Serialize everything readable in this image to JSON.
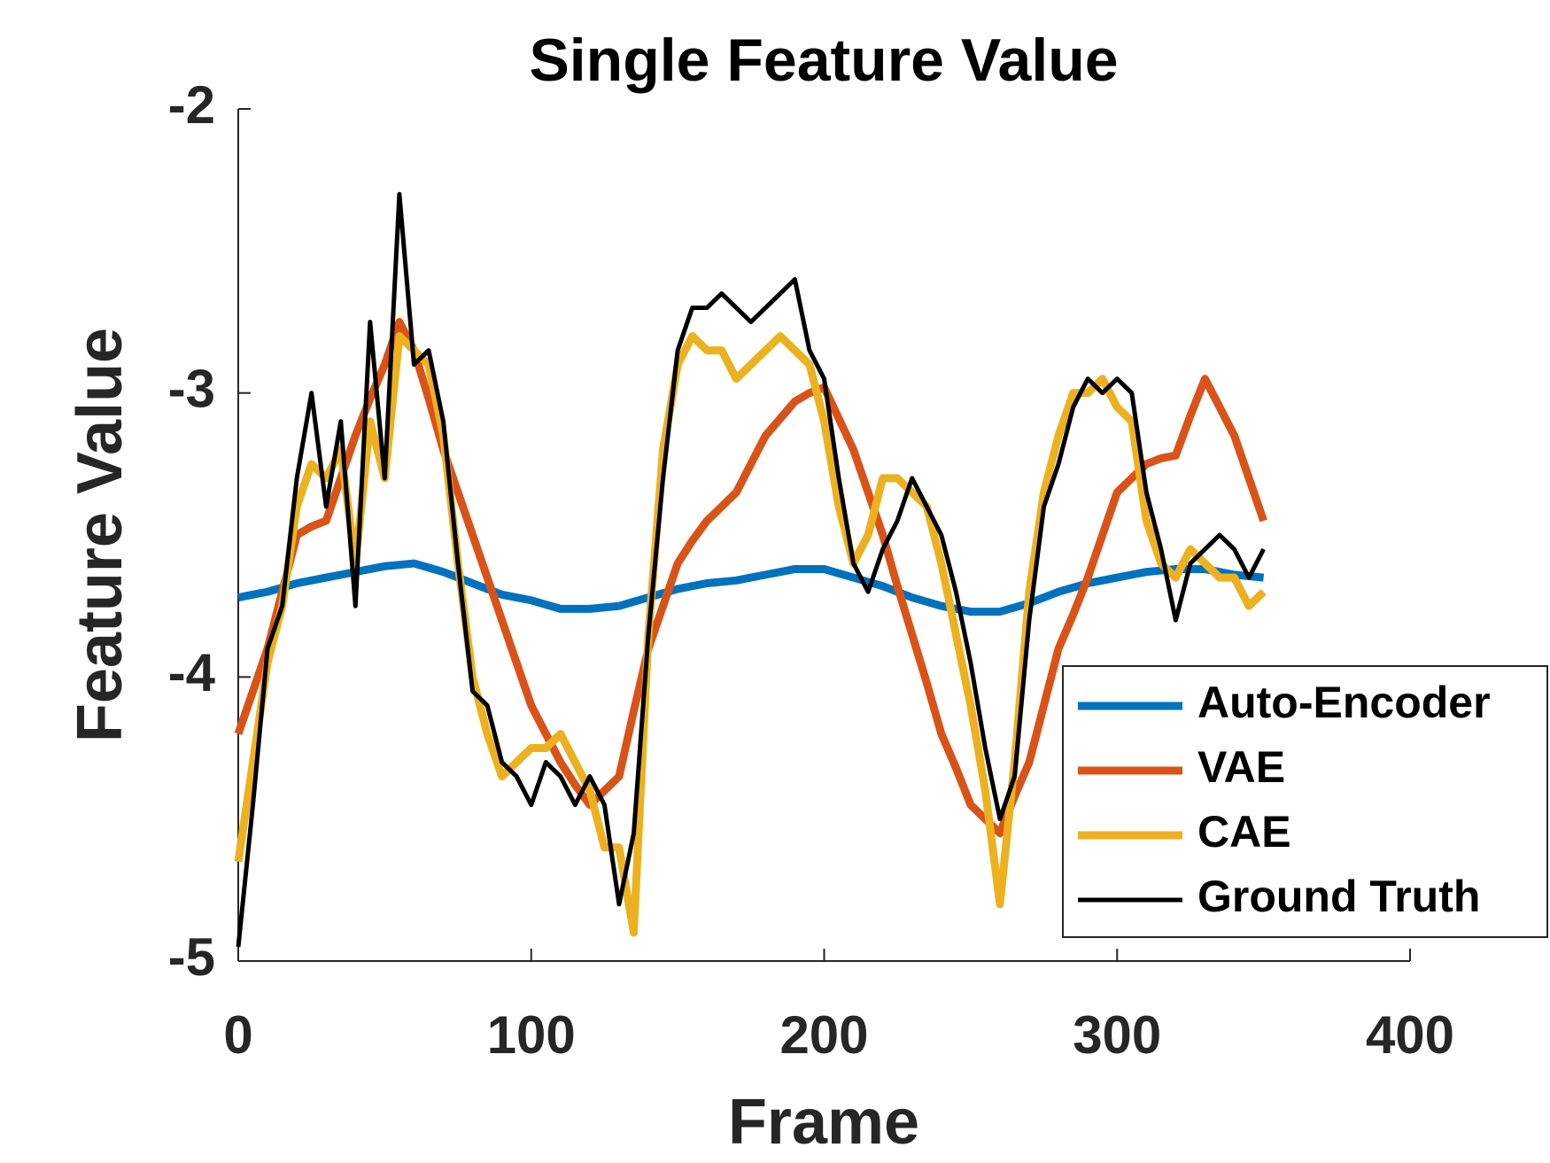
{
  "chart_data": {
    "type": "line",
    "title": "Single Feature Value",
    "x_label": "Frame",
    "y_label": "Feature Value",
    "x": [
      0,
      5,
      10,
      15,
      20,
      25,
      30,
      35,
      40,
      45,
      50,
      55,
      60,
      65,
      70,
      75,
      80,
      85,
      90,
      95,
      100,
      105,
      110,
      115,
      120,
      125,
      130,
      135,
      140,
      145,
      150,
      155,
      160,
      165,
      170,
      175,
      180,
      185,
      190,
      195,
      200,
      205,
      210,
      215,
      220,
      225,
      230,
      235,
      240,
      245,
      250,
      255,
      260,
      265,
      270,
      275,
      280,
      285,
      290,
      295,
      300,
      305,
      310,
      315,
      320,
      325,
      330,
      335,
      340,
      345,
      350
    ],
    "series": [
      {
        "name": "Auto-Encoder",
        "color": "#0072BD",
        "width": 9,
        "values": [
          -3.72,
          -3.71,
          -3.7,
          -3.685,
          -3.67,
          -3.66,
          -3.65,
          -3.64,
          -3.63,
          -3.62,
          -3.61,
          -3.605,
          -3.6,
          -3.615,
          -3.63,
          -3.65,
          -3.67,
          -3.69,
          -3.71,
          -3.72,
          -3.73,
          -3.745,
          -3.76,
          -3.76,
          -3.76,
          -3.755,
          -3.75,
          -3.735,
          -3.72,
          -3.705,
          -3.69,
          -3.68,
          -3.67,
          -3.665,
          -3.66,
          -3.65,
          -3.64,
          -3.63,
          -3.62,
          -3.62,
          -3.62,
          -3.635,
          -3.65,
          -3.665,
          -3.68,
          -3.7,
          -3.72,
          -3.735,
          -3.75,
          -3.76,
          -3.77,
          -3.77,
          -3.77,
          -3.755,
          -3.74,
          -3.72,
          -3.7,
          -3.685,
          -3.67,
          -3.66,
          -3.65,
          -3.64,
          -3.63,
          -3.625,
          -3.62,
          -3.62,
          -3.62,
          -3.63,
          -3.64,
          -3.645,
          -3.65
        ]
      },
      {
        "name": "VAE",
        "color": "#D95319",
        "width": 9,
        "values": [
          -4.2,
          -4.05,
          -3.9,
          -3.7,
          -3.5,
          -3.47,
          -3.45,
          -3.3,
          -3.15,
          -3.02,
          -2.9,
          -2.75,
          -2.85,
          -3.02,
          -3.2,
          -3.35,
          -3.5,
          -3.65,
          -3.8,
          -3.95,
          -4.1,
          -4.2,
          -4.3,
          -4.38,
          -4.45,
          -4.4,
          -4.35,
          -4.12,
          -3.9,
          -3.75,
          -3.6,
          -3.52,
          -3.45,
          -3.4,
          -3.35,
          -3.25,
          -3.15,
          -3.09,
          -3.03,
          -3.0,
          -2.98,
          -3.09,
          -3.2,
          -3.35,
          -3.5,
          -3.68,
          -3.85,
          -4.02,
          -4.2,
          -4.32,
          -4.45,
          -4.5,
          -4.55,
          -4.42,
          -4.3,
          -4.1,
          -3.9,
          -3.78,
          -3.65,
          -3.5,
          -3.35,
          -3.3,
          -3.25,
          -3.23,
          -3.22,
          -3.08,
          -2.95,
          -3.05,
          -3.15,
          -3.3,
          -3.45
        ]
      },
      {
        "name": "CAE",
        "color": "#EDB120",
        "width": 9,
        "values": [
          -4.65,
          -4.3,
          -3.95,
          -3.75,
          -3.4,
          -3.25,
          -3.3,
          -3.2,
          -3.6,
          -3.1,
          -3.3,
          -2.8,
          -2.85,
          -2.9,
          -3.15,
          -3.6,
          -4.0,
          -4.2,
          -4.35,
          -4.3,
          -4.25,
          -4.25,
          -4.2,
          -4.3,
          -4.4,
          -4.6,
          -4.6,
          -4.9,
          -3.85,
          -3.2,
          -2.9,
          -2.8,
          -2.85,
          -2.85,
          -2.95,
          -2.9,
          -2.85,
          -2.8,
          -2.85,
          -2.9,
          -3.1,
          -3.4,
          -3.6,
          -3.5,
          -3.3,
          -3.3,
          -3.35,
          -3.4,
          -3.6,
          -3.85,
          -4.1,
          -4.4,
          -4.8,
          -4.3,
          -3.7,
          -3.35,
          -3.15,
          -3.0,
          -3.0,
          -2.95,
          -3.05,
          -3.1,
          -3.45,
          -3.6,
          -3.65,
          -3.55,
          -3.6,
          -3.65,
          -3.65,
          -3.75,
          -3.7
        ]
      },
      {
        "name": "Ground Truth",
        "color": "#000000",
        "width": 5,
        "values": [
          -4.95,
          -4.45,
          -3.9,
          -3.75,
          -3.3,
          -3.0,
          -3.4,
          -3.1,
          -3.75,
          -2.75,
          -3.3,
          -2.3,
          -2.9,
          -2.85,
          -3.1,
          -3.6,
          -4.05,
          -4.1,
          -4.3,
          -4.35,
          -4.45,
          -4.3,
          -4.35,
          -4.45,
          -4.35,
          -4.45,
          -4.8,
          -4.55,
          -3.85,
          -3.3,
          -2.85,
          -2.7,
          -2.7,
          -2.65,
          -2.7,
          -2.75,
          -2.7,
          -2.65,
          -2.6,
          -2.85,
          -2.95,
          -3.3,
          -3.6,
          -3.7,
          -3.55,
          -3.45,
          -3.3,
          -3.4,
          -3.5,
          -3.7,
          -3.95,
          -4.25,
          -4.5,
          -4.35,
          -3.8,
          -3.4,
          -3.25,
          -3.05,
          -2.95,
          -3.0,
          -2.95,
          -3.0,
          -3.35,
          -3.55,
          -3.8,
          -3.6,
          -3.55,
          -3.5,
          -3.55,
          -3.65,
          -3.55
        ]
      }
    ],
    "xlim": [
      0,
      400
    ],
    "ylim": [
      -5,
      -2
    ],
    "xticks": [
      0,
      100,
      200,
      300,
      400
    ],
    "yticks": [
      -5,
      -4,
      -3,
      -2
    ],
    "legend": "lower right"
  }
}
